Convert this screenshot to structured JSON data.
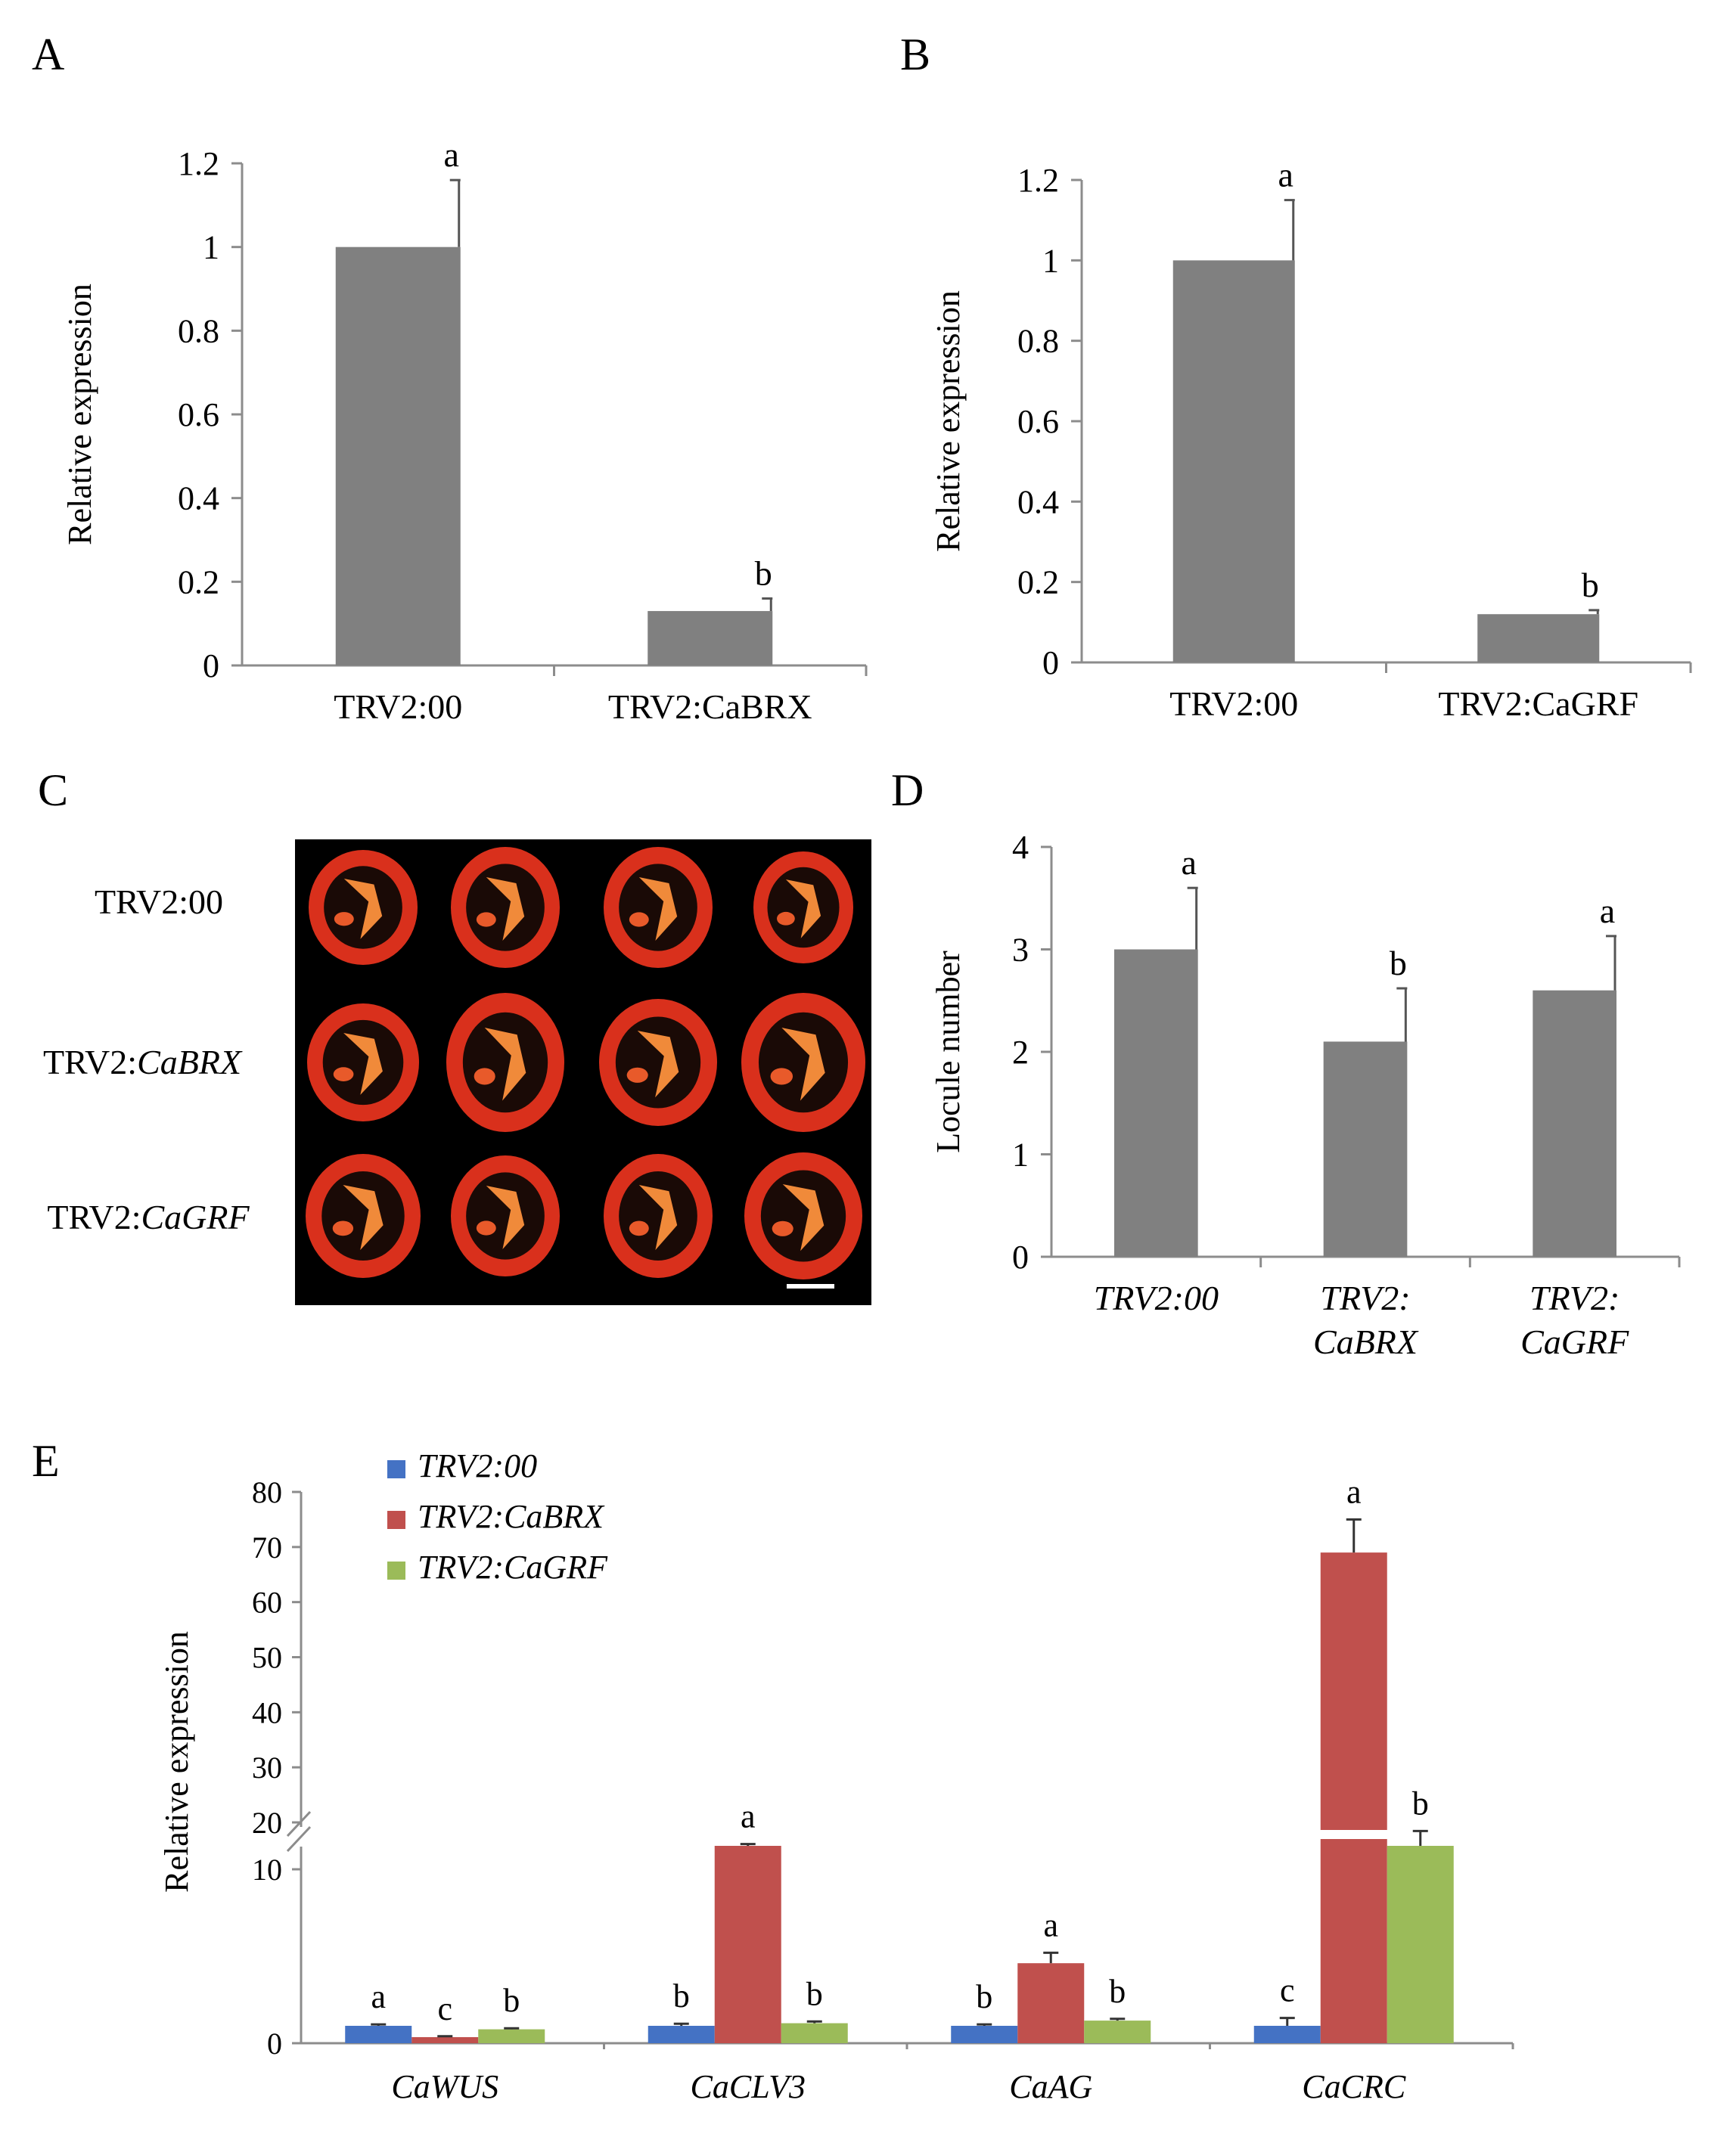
{
  "panels": {
    "A": {
      "letter": "A",
      "ylabel": "Relative expression",
      "ticks": [
        "1.2",
        "1",
        "0.8",
        "0.6",
        "0.4",
        "0.2",
        "0"
      ],
      "categories": [
        "TRV2:00",
        "TRV2:CaBRX"
      ],
      "sig": [
        "a",
        "b"
      ]
    },
    "B": {
      "letter": "B",
      "ylabel": "Relative expression",
      "ticks": [
        "1.2",
        "1",
        "0.8",
        "0.6",
        "0.4",
        "0.2",
        "0"
      ],
      "categories": [
        "TRV2:00",
        "TRV2:CaGRF"
      ],
      "sig": [
        "a",
        "b"
      ]
    },
    "C": {
      "letter": "C",
      "row_labels": [
        {
          "prefix": "TRV2:00",
          "gene": ""
        },
        {
          "prefix": "TRV2:",
          "gene": "CaBRX"
        },
        {
          "prefix": "TRV2:",
          "gene": "CaGRF"
        }
      ]
    },
    "D": {
      "letter": "D",
      "ylabel": "Locule number",
      "ticks": [
        "4",
        "3",
        "2",
        "1",
        "0"
      ],
      "category_lines": [
        [
          "TRV2:00"
        ],
        [
          "TRV2:",
          "CaBRX"
        ],
        [
          "TRV2:",
          "CaGRF"
        ]
      ],
      "sig": [
        "a",
        "b",
        "a"
      ]
    },
    "E": {
      "letter": "E",
      "ylabel": "Relative expression",
      "upper_ticks": [
        "80",
        "70",
        "60",
        "50",
        "40",
        "30",
        "20"
      ],
      "lower_ticks": [
        "10",
        "0"
      ],
      "legend": [
        "TRV2:00",
        "TRV2:CaBRX",
        "TRV2:CaGRF"
      ],
      "categories": [
        "CaWUS",
        "CaCLV3",
        "CaAG",
        "CaCRC"
      ],
      "sig": [
        [
          "a",
          "c",
          "b"
        ],
        [
          "b",
          "a",
          "b"
        ],
        [
          "b",
          "a",
          "b"
        ],
        [
          "c",
          "a",
          "b"
        ]
      ]
    }
  },
  "colors": {
    "bar_gray": "#808080",
    "series": [
      "#4472c4",
      "#c0504d",
      "#9bbb59"
    ],
    "photo_bg": "#000000",
    "fruit": "#d9301c",
    "placenta": "#f08a3a"
  },
  "chart_data": [
    {
      "type": "bar",
      "panel": "A",
      "categories": [
        "TRV2:00",
        "TRV2:CaBRX"
      ],
      "values": [
        1.0,
        0.13
      ],
      "errors": [
        0.16,
        0.03
      ],
      "significance": [
        "a",
        "b"
      ],
      "xlabel": "",
      "ylabel": "Relative expression",
      "ylim": [
        0,
        1.2
      ]
    },
    {
      "type": "bar",
      "panel": "B",
      "categories": [
        "TRV2:00",
        "TRV2:CaGRF"
      ],
      "values": [
        1.0,
        0.12
      ],
      "errors": [
        0.15,
        0.01
      ],
      "significance": [
        "a",
        "b"
      ],
      "xlabel": "",
      "ylabel": "Relative expression",
      "ylim": [
        0,
        1.2
      ]
    },
    {
      "type": "bar",
      "panel": "D",
      "categories": [
        "TRV2:00",
        "TRV2:CaBRX",
        "TRV2:CaGRF"
      ],
      "values": [
        3.0,
        2.1,
        2.6
      ],
      "errors": [
        0.6,
        0.52,
        0.53
      ],
      "significance": [
        "a",
        "b",
        "a"
      ],
      "xlabel": "",
      "ylabel": "Locule number",
      "ylim": [
        0,
        4
      ]
    },
    {
      "type": "bar",
      "panel": "E",
      "categories": [
        "CaWUS",
        "CaCLV3",
        "CaAG",
        "CaCRC"
      ],
      "series": [
        {
          "name": "TRV2:00",
          "values": [
            1.0,
            1.0,
            1.0,
            1.0
          ],
          "errors": [
            0.08,
            0.12,
            0.08,
            0.45
          ]
        },
        {
          "name": "TRV2:CaBRX",
          "values": [
            0.35,
            11.0,
            4.6,
            69.0
          ],
          "errors": [
            0.05,
            0.45,
            0.6,
            6.0
          ]
        },
        {
          "name": "TRV2:CaGRF",
          "values": [
            0.8,
            1.15,
            1.3,
            11.3
          ],
          "errors": [
            0.06,
            0.1,
            0.1,
            0.9
          ]
        }
      ],
      "significance": [
        [
          "a",
          "c",
          "b"
        ],
        [
          "b",
          "a",
          "b"
        ],
        [
          "b",
          "a",
          "b"
        ],
        [
          "c",
          "a",
          "b"
        ]
      ],
      "xlabel": "",
      "ylabel": "Relative expression",
      "axis_break": {
        "lower": [
          0,
          10
        ],
        "upper": [
          20,
          80
        ]
      },
      "legend_position": "top-left"
    }
  ]
}
